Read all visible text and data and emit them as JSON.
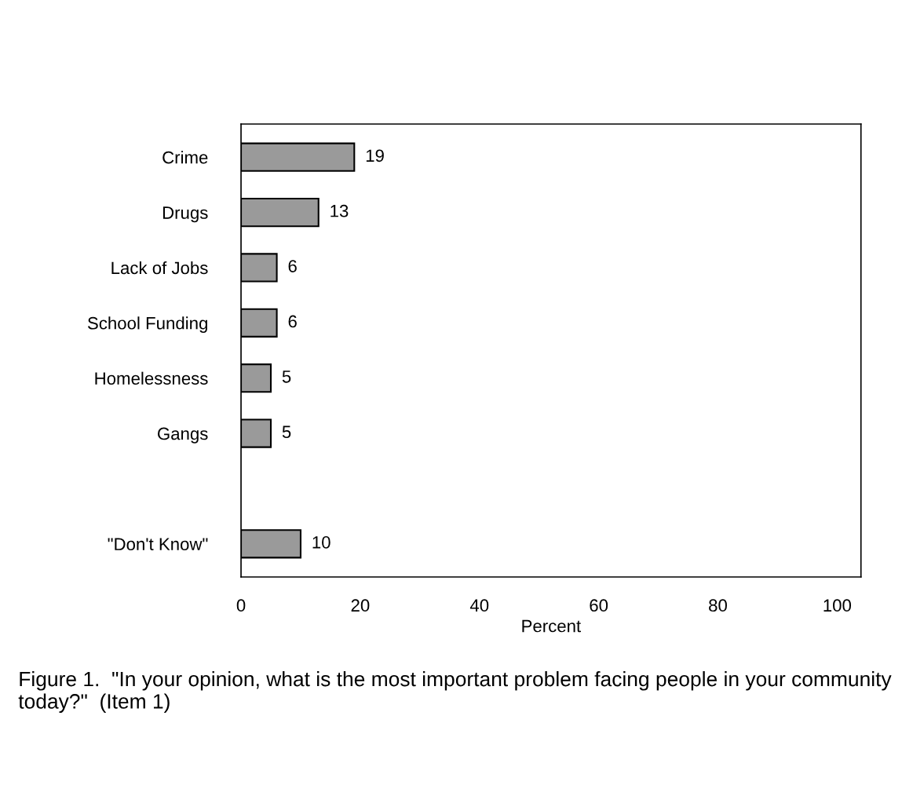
{
  "chart_data": {
    "type": "bar",
    "orientation": "horizontal",
    "categories": [
      "Crime",
      "Drugs",
      "Lack of Jobs",
      "School Funding",
      "Homelessness",
      "Gangs",
      null,
      "\"Don't Know\""
    ],
    "values": [
      19,
      13,
      6,
      6,
      5,
      5,
      null,
      10
    ],
    "color": "#9a9a9a",
    "xlabel": "Percent",
    "xlim": [
      0,
      104
    ],
    "xticks": [
      0,
      20,
      40,
      60,
      80,
      100
    ],
    "data_labels": true,
    "grid": false,
    "annotations": [
      "Figure 1.  \"In your opinion, what is the most important problem facing people in your community today?\"  (Item 1)"
    ]
  }
}
